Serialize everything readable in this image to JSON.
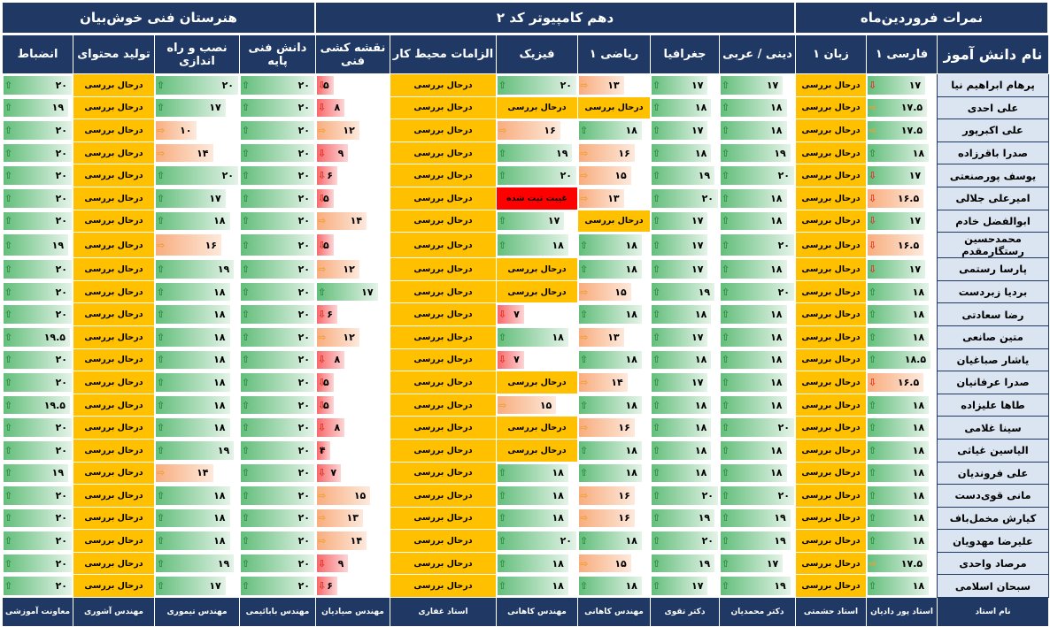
{
  "banners": {
    "school": "هنرستان فنی خوش‌بیان",
    "class": "دهم کامپیوتر کد ۲",
    "grades": "نمرات فروردین‌ماه"
  },
  "columns": [
    {
      "key": "name",
      "label": "نام دانش آموز",
      "teacher": "نام استاد"
    },
    {
      "key": "farsi",
      "label": "فارسی ۱",
      "teacher": "استاد پور دادیان"
    },
    {
      "key": "zaban",
      "label": "زبان ۱",
      "teacher": "استاد حشمتی"
    },
    {
      "key": "dini",
      "label": "دینی / عربی",
      "teacher": "دکتر محمدیان"
    },
    {
      "key": "joghrafia",
      "label": "جغرافیا",
      "teacher": "دکتر تقوی"
    },
    {
      "key": "riazi",
      "label": "ریاضی ۱",
      "teacher": "مهندس کاهانی"
    },
    {
      "key": "fizik",
      "label": "فیزیک",
      "teacher": "مهندس کاهانی"
    },
    {
      "key": "elzamat",
      "label": "الزامات محیط کار",
      "teacher": "استاد غفاری"
    },
    {
      "key": "naghshe",
      "label": "نقشه کشی فنی",
      "teacher": "مهندس صیادیان"
    },
    {
      "key": "danesh",
      "label": "دانش فنی پایه",
      "teacher": "مهندس بابائیمی"
    },
    {
      "key": "nasb",
      "label": "نصب و راه اندازی",
      "teacher": "مهندس تیموری"
    },
    {
      "key": "tolid",
      "label": "تولید محتوای",
      "teacher": "مهندس آشوری"
    },
    {
      "key": "enzebat",
      "label": "انضباط",
      "teacher": "معاونت آموزشی"
    }
  ],
  "labels": {
    "pending": "درحال بررسی",
    "absent": "غیبت ثبت شده"
  },
  "colors": {
    "header": "#1f3864",
    "pending": "#ffc000",
    "absent": "#ff0000",
    "name_cell": "#dbe5f1",
    "up": "#2e8b3c",
    "mid": "#f0a030",
    "down": "#e03020"
  },
  "students": [
    {
      "name": "پرهام ابراهیم نیا",
      "farsi": "۱۷",
      "zaban": "p",
      "dini": "۱۷",
      "joghrafia": "۱۷",
      "riazi": "۱۳",
      "fizik": "۲۰",
      "elzamat": "p",
      "naghshe": "۵",
      "danesh": "۲۰",
      "nasb": "۲۰",
      "tolid": "p",
      "enzebat": "۲۰"
    },
    {
      "name": "علی احدی",
      "farsi": "۱۷.۵",
      "zaban": "p",
      "dini": "۱۸",
      "joghrafia": "۱۸",
      "riazi": "p",
      "fizik": "p",
      "elzamat": "p",
      "naghshe": "۸",
      "danesh": "۲۰",
      "nasb": "۱۷",
      "tolid": "p",
      "enzebat": "۱۹"
    },
    {
      "name": "علی اکبرپور",
      "farsi": "۱۷.۵",
      "zaban": "p",
      "dini": "۱۸",
      "joghrafia": "۱۷",
      "riazi": "۱۸",
      "fizik": "۱۶",
      "elzamat": "p",
      "naghshe": "۱۲",
      "danesh": "۲۰",
      "nasb": "۱۰",
      "tolid": "p",
      "enzebat": "۲۰"
    },
    {
      "name": "صدرا باقرزاده",
      "farsi": "۱۸",
      "zaban": "p",
      "dini": "۱۹",
      "joghrafia": "۱۸",
      "riazi": "۱۶",
      "fizik": "۱۹",
      "elzamat": "p",
      "naghshe": "۹",
      "danesh": "۲۰",
      "nasb": "۱۴",
      "tolid": "p",
      "enzebat": "۲۰"
    },
    {
      "name": "یوسف پورصنعتی",
      "farsi": "۱۷",
      "zaban": "p",
      "dini": "۲۰",
      "joghrafia": "۱۹",
      "riazi": "۱۵",
      "fizik": "۲۰",
      "elzamat": "p",
      "naghshe": "۶",
      "danesh": "۲۰",
      "nasb": "۲۰",
      "tolid": "p",
      "enzebat": "۲۰"
    },
    {
      "name": "امیرعلی جلالی",
      "farsi": "۱۶.۵",
      "zaban": "p",
      "dini": "۱۸",
      "joghrafia": "۲۰",
      "riazi": "۱۳",
      "fizik": "a",
      "elzamat": "p",
      "naghshe": "۵",
      "danesh": "۲۰",
      "nasb": "۱۷",
      "tolid": "p",
      "enzebat": "۲۰"
    },
    {
      "name": "ابوالفضل خادم",
      "farsi": "۱۷",
      "zaban": "p",
      "dini": "۱۸",
      "joghrafia": "۱۷",
      "riazi": "p",
      "fizik": "۱۷",
      "elzamat": "p",
      "naghshe": "۱۴",
      "danesh": "۲۰",
      "nasb": "۱۸",
      "tolid": "p",
      "enzebat": "۲۰"
    },
    {
      "name": "محمدحسین رستگارمقدم",
      "farsi": "۱۶.۵",
      "zaban": "p",
      "dini": "۲۰",
      "joghrafia": "۱۷",
      "riazi": "۱۸",
      "fizik": "۱۸",
      "elzamat": "p",
      "naghshe": "۵",
      "danesh": "۲۰",
      "nasb": "۱۶",
      "tolid": "p",
      "enzebat": "۱۹"
    },
    {
      "name": "پارسا رستمی",
      "farsi": "۱۷",
      "zaban": "p",
      "dini": "۱۸",
      "joghrafia": "۱۷",
      "riazi": "۱۸",
      "fizik": "p",
      "elzamat": "p",
      "naghshe": "۱۲",
      "danesh": "۲۰",
      "nasb": "۱۹",
      "tolid": "p",
      "enzebat": "۲۰"
    },
    {
      "name": "بردیا زبردست",
      "farsi": "۱۸",
      "zaban": "p",
      "dini": "۲۰",
      "joghrafia": "۱۹",
      "riazi": "۱۵",
      "fizik": "p",
      "elzamat": "p",
      "naghshe": "۱۷",
      "danesh": "۲۰",
      "nasb": "۱۸",
      "tolid": "p",
      "enzebat": "۲۰"
    },
    {
      "name": "رضا سعادتی",
      "farsi": "۱۸",
      "zaban": "p",
      "dini": "۱۸",
      "joghrafia": "۱۸",
      "riazi": "۱۸",
      "fizik": "۷",
      "elzamat": "p",
      "naghshe": "۶",
      "danesh": "۲۰",
      "nasb": "۱۸",
      "tolid": "p",
      "enzebat": "۲۰"
    },
    {
      "name": "متین صانعی",
      "farsi": "۱۸",
      "zaban": "p",
      "dini": "۱۸",
      "joghrafia": "۱۷",
      "riazi": "۱۳",
      "fizik": "۱۸",
      "elzamat": "p",
      "naghshe": "۱۲",
      "danesh": "۲۰",
      "nasb": "۱۸",
      "tolid": "p",
      "enzebat": "۱۹.۵"
    },
    {
      "name": "یاشار صباغیان",
      "farsi": "۱۸.۵",
      "zaban": "p",
      "dini": "۱۸",
      "joghrafia": "۱۸",
      "riazi": "۱۸",
      "fizik": "۷",
      "elzamat": "p",
      "naghshe": "۸",
      "danesh": "۲۰",
      "nasb": "۱۸",
      "tolid": "p",
      "enzebat": "۲۰"
    },
    {
      "name": "صدرا عرفانیان",
      "farsi": "۱۶.۵",
      "zaban": "p",
      "dini": "۱۸",
      "joghrafia": "۱۷",
      "riazi": "۱۴",
      "fizik": "p",
      "elzamat": "p",
      "naghshe": "۵",
      "danesh": "۲۰",
      "nasb": "۱۸",
      "tolid": "p",
      "enzebat": "۲۰"
    },
    {
      "name": "طاها علیزاده",
      "farsi": "۱۸",
      "zaban": "p",
      "dini": "۱۸",
      "joghrafia": "۱۸",
      "riazi": "۱۸",
      "fizik": "۱۵",
      "elzamat": "p",
      "naghshe": "۵",
      "danesh": "۲۰",
      "nasb": "۱۸",
      "tolid": "p",
      "enzebat": "۱۹.۵"
    },
    {
      "name": "سینا غلامی",
      "farsi": "۱۸",
      "zaban": "p",
      "dini": "۲۰",
      "joghrafia": "۱۸",
      "riazi": "۱۶",
      "fizik": "p",
      "elzamat": "p",
      "naghshe": "۸",
      "danesh": "۲۰",
      "nasb": "۱۸",
      "tolid": "p",
      "enzebat": "۲۰"
    },
    {
      "name": "الیاسین غیاثی",
      "farsi": "۱۸",
      "zaban": "p",
      "dini": "۱۸",
      "joghrafia": "۱۸",
      "riazi": "۱۸",
      "fizik": "p",
      "elzamat": "p",
      "naghshe": "۴",
      "danesh": "۲۰",
      "nasb": "۱۹",
      "tolid": "p",
      "enzebat": "۲۰"
    },
    {
      "name": "علی فروندیان",
      "farsi": "۱۸",
      "zaban": "p",
      "dini": "۱۸",
      "joghrafia": "۱۸",
      "riazi": "۱۸",
      "fizik": "۱۸",
      "elzamat": "p",
      "naghshe": "۷",
      "danesh": "۲۰",
      "nasb": "۱۴",
      "tolid": "p",
      "enzebat": "۱۹"
    },
    {
      "name": "مانی قوی‌دست",
      "farsi": "۱۸",
      "zaban": "p",
      "dini": "۲۰",
      "joghrafia": "۲۰",
      "riazi": "۱۶",
      "fizik": "۱۸",
      "elzamat": "p",
      "naghshe": "۱۵",
      "danesh": "۲۰",
      "nasb": "۱۸",
      "tolid": "p",
      "enzebat": "۲۰"
    },
    {
      "name": "کیارش مخمل‌باف",
      "farsi": "۱۸",
      "zaban": "p",
      "dini": "۱۹",
      "joghrafia": "۱۹",
      "riazi": "۱۶",
      "fizik": "۱۸",
      "elzamat": "p",
      "naghshe": "۱۳",
      "danesh": "۲۰",
      "nasb": "۱۸",
      "tolid": "p",
      "enzebat": "۲۰"
    },
    {
      "name": "علیرضا مهدویان",
      "farsi": "۱۸",
      "zaban": "p",
      "dini": "۱۹",
      "joghrafia": "۲۰",
      "riazi": "۱۸",
      "fizik": "۲۰",
      "elzamat": "p",
      "naghshe": "۱۴",
      "danesh": "۲۰",
      "nasb": "۱۸",
      "tolid": "p",
      "enzebat": "۲۰"
    },
    {
      "name": "مرصاد واحدی",
      "farsi": "۱۷.۵",
      "zaban": "p",
      "dini": "۱۷",
      "joghrafia": "۱۹",
      "riazi": "۱۵",
      "fizik": "۱۸",
      "elzamat": "p",
      "naghshe": "۹",
      "danesh": "۲۰",
      "nasb": "۱۹",
      "tolid": "p",
      "enzebat": "۲۰"
    },
    {
      "name": "سبحان اسلامی",
      "farsi": "۱۸",
      "zaban": "p",
      "dini": "۱۹",
      "joghrafia": "۱۷",
      "riazi": "۱۸",
      "fizik": "۱۸",
      "elzamat": "p",
      "naghshe": "۶",
      "danesh": "۲۰",
      "nasb": "۱۷",
      "tolid": "p",
      "enzebat": "۲۰"
    }
  ]
}
